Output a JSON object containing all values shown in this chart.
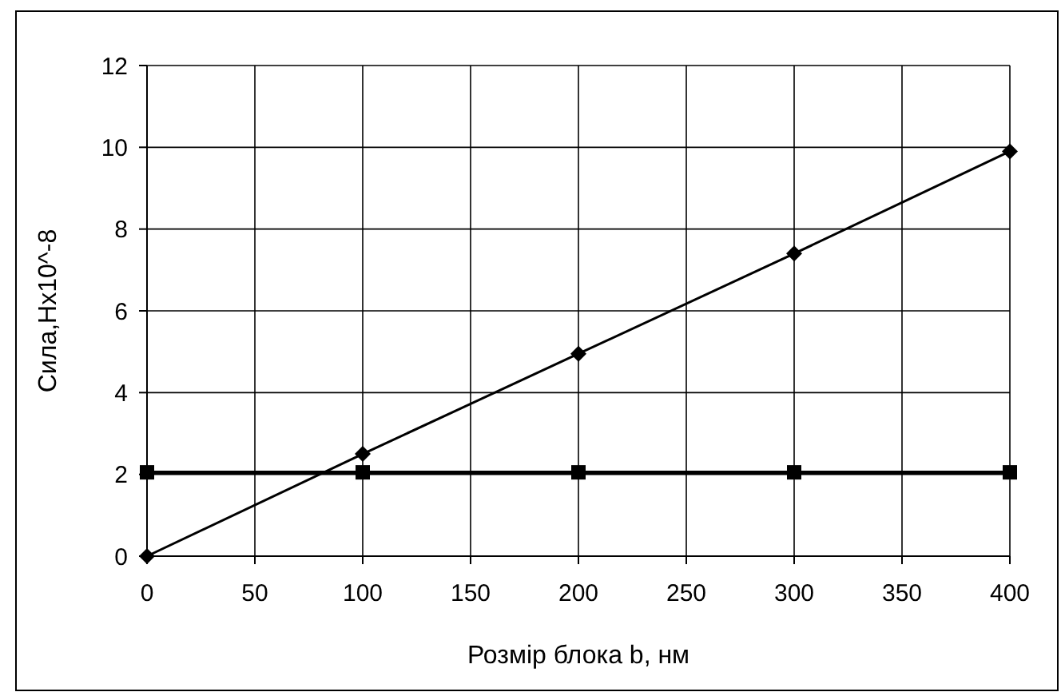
{
  "chart_data": {
    "type": "line",
    "xlabel": "Розмір блока b, нм",
    "ylabel": "Сила,Нх10^-8",
    "x": [
      0,
      100,
      200,
      300,
      400
    ],
    "series": [
      {
        "color": "#000000",
        "values": [
          0,
          2.5,
          4.95,
          7.4,
          9.9
        ],
        "marker": "diamond"
      },
      {
        "color": "#000000",
        "values": [
          2.05,
          2.05,
          2.05,
          2.05,
          2.05
        ],
        "marker": "square"
      }
    ],
    "xlim": [
      0,
      400
    ],
    "xticks": [
      0,
      50,
      100,
      150,
      200,
      250,
      300,
      350,
      400
    ],
    "ylim": [
      0,
      12
    ],
    "yticks": [
      0,
      2,
      4,
      6,
      8,
      10,
      12
    ],
    "grid": true,
    "line_style": "solid"
  }
}
